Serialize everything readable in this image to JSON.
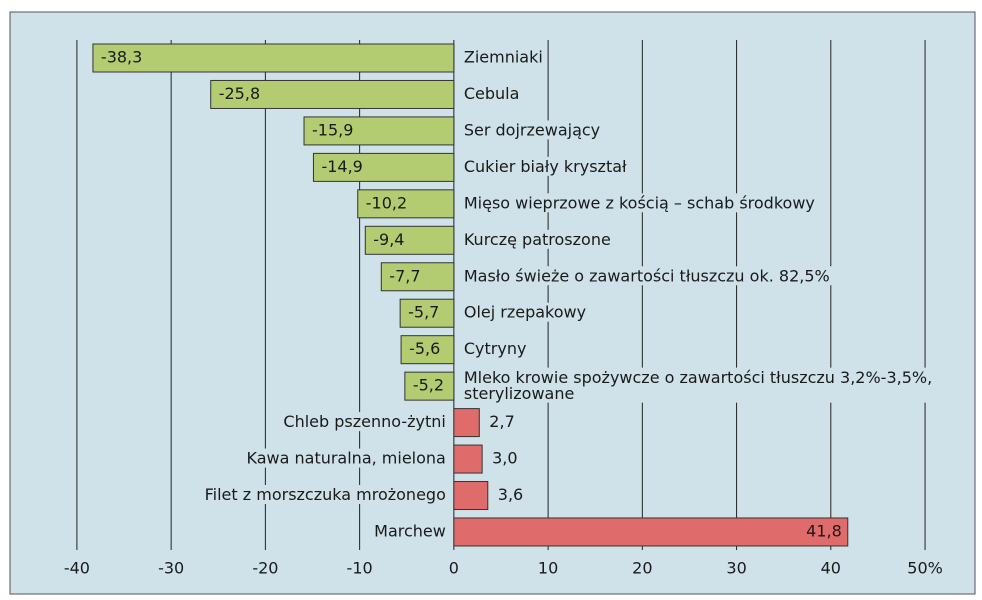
{
  "chart_data": {
    "type": "hbar",
    "categories": [
      "Ziemniaki",
      "Cebula",
      "Ser dojrzewający",
      "Cukier biały kryształ",
      "Mięso wieprzowe z kością – schab środkowy",
      "Kurczę patroszone",
      "Masło świeże o zawartości tłuszczu ok. 82,5%",
      "Olej rzepakowy",
      "Cytryny",
      "Mleko krowie spożywcze o zawartości tłuszczu 3,2%-3,5%,\nsterylizowane",
      "Chleb  pszenno-żytni",
      "Kawa naturalna, mielona",
      "Filet z morszczuka mrożonego",
      "Marchew"
    ],
    "values": [
      -38.3,
      -25.8,
      -15.9,
      -14.9,
      -10.2,
      -9.4,
      -7.7,
      -5.7,
      -5.6,
      -5.2,
      2.7,
      3.0,
      3.6,
      41.8
    ],
    "value_labels": [
      "-38,3",
      "-25,8",
      "-15,9",
      "-14,9",
      "-10,2",
      "-9,4",
      "-7,7",
      "-5,7",
      "-5,6",
      "-5,2",
      "2,7",
      "3,0",
      "3,6",
      "41,8"
    ],
    "color_negative": "#b3cc72",
    "color_positive": "#e06b6b",
    "xlim": [
      -47.1,
      55.3
    ],
    "xticks": [
      -40,
      -30,
      -20,
      -10,
      0,
      10,
      20,
      30,
      40,
      {
        "value": 50,
        "label": "50%"
      }
    ],
    "grid": true
  }
}
